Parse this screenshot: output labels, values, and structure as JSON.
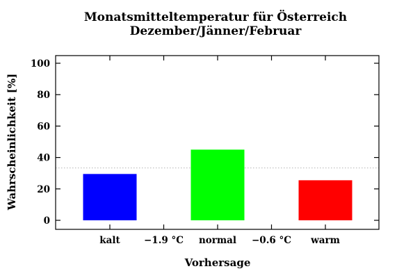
{
  "chart_data": {
    "type": "bar",
    "title": "Monatsmitteltemperatur für Österreich",
    "subtitle": "Dezember/Jänner/Februar",
    "xlabel": "Vorhersage",
    "ylabel": "Wahrscheinlichkeit [%]",
    "ylim": [
      0,
      100
    ],
    "yticks": [
      0,
      20,
      40,
      60,
      80,
      100
    ],
    "reference_line": 33.3,
    "grid": false,
    "xtick_labels": [
      "kalt",
      "−1.9 °C",
      "normal",
      "−0.6 °C",
      "warm"
    ],
    "categories": [
      "kalt",
      "normal",
      "warm"
    ],
    "values": [
      29.5,
      45.0,
      25.5
    ],
    "colors": [
      "#0000ff",
      "#00ff00",
      "#ff0000"
    ]
  }
}
